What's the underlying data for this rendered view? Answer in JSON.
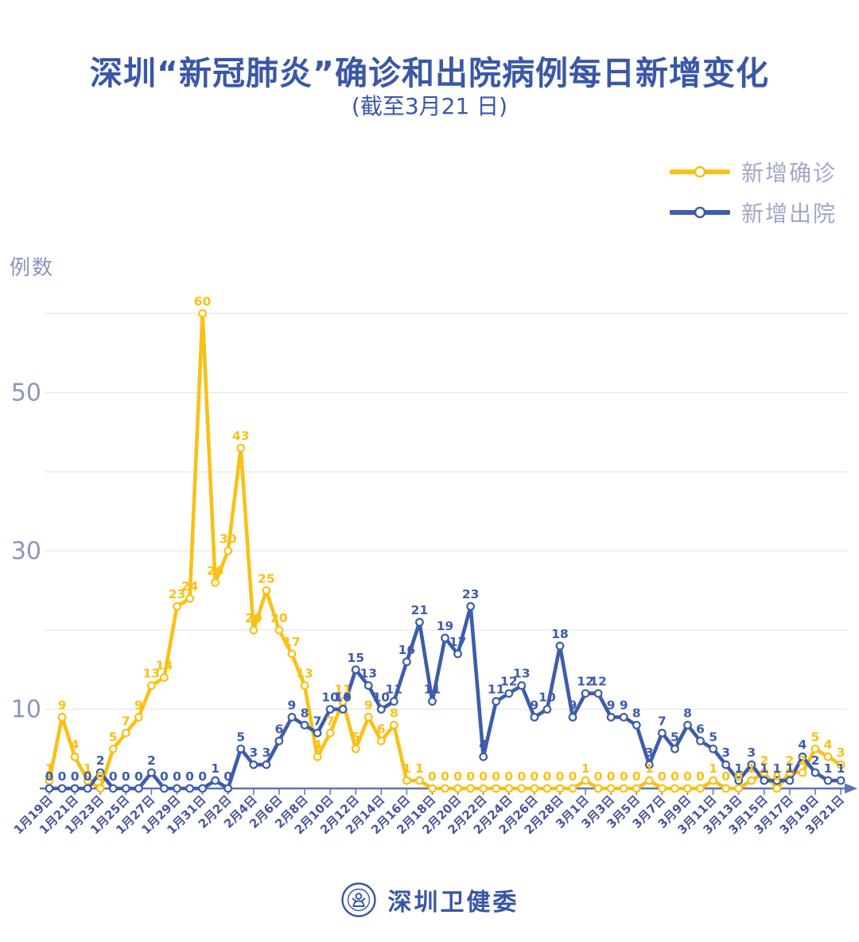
{
  "header": {
    "title": "深圳“新冠肺炎”确诊和出院病例每日新增变化",
    "subtitle": "(截至3月21 日)"
  },
  "legend": {
    "items": [
      {
        "label": "新增确诊",
        "color": "#F9C116"
      },
      {
        "label": "新增出院",
        "color": "#3E5CAB"
      }
    ]
  },
  "y_axis_unit": "例数",
  "footer": {
    "brand": "深圳卫健委"
  },
  "colors": {
    "title_blue": "#3A57A8",
    "confirmed_yellow": "#F9C116",
    "discharged_blue": "#3E5CAB",
    "legend_text": "#A3A7C9",
    "axis_tick_text": "#8E95BB",
    "date_label": "#47549B",
    "gridline": "#E6E7EE",
    "axis_line": "#6072B4"
  },
  "chart_data": {
    "type": "line",
    "title": "深圳“新冠肺炎”确诊和出院病例每日新增变化",
    "subtitle": "(截至3月21 日)",
    "ylabel": "例数",
    "ylim": [
      0,
      63
    ],
    "y_ticks_labeled": [
      10,
      30,
      50
    ],
    "gridlines_every": 10,
    "grid_max": 60,
    "grid": "horizontal",
    "legend_position": "top-right",
    "x_label_every": 2,
    "point_labels": true,
    "marker": "open-circle",
    "categories": [
      "1月19日",
      "1月20日",
      "1月21日",
      "1月22日",
      "1月23日",
      "1月24日",
      "1月25日",
      "1月26日",
      "1月27日",
      "1月28日",
      "1月29日",
      "1月30日",
      "1月31日",
      "2月1日",
      "2月2日",
      "2月3日",
      "2月4日",
      "2月5日",
      "2月6日",
      "2月7日",
      "2月8日",
      "2月9日",
      "2月10日",
      "2月11日",
      "2月12日",
      "2月13日",
      "2月14日",
      "2月15日",
      "2月16日",
      "2月17日",
      "2月18日",
      "2月19日",
      "2月20日",
      "2月21日",
      "2月22日",
      "2月23日",
      "2月24日",
      "2月25日",
      "2月26日",
      "2月27日",
      "2月28日",
      "2月29日",
      "3月1日",
      "3月2日",
      "3月3日",
      "3月4日",
      "3月5日",
      "3月6日",
      "3月7日",
      "3月8日",
      "3月9日",
      "3月10日",
      "3月11日",
      "3月12日",
      "3月13日",
      "3月14日",
      "3月15日",
      "3月16日",
      "3月17日",
      "3月18日",
      "3月19日",
      "3月20日",
      "3月21日"
    ],
    "series": [
      {
        "name": "新增确诊",
        "color": "#F9C116",
        "values": [
          1,
          9,
          4,
          1,
          0,
          5,
          7,
          9,
          13,
          14,
          23,
          24,
          60,
          26,
          30,
          43,
          20,
          25,
          20,
          17,
          13,
          4,
          7,
          11,
          5,
          9,
          6,
          8,
          1,
          1,
          0,
          0,
          0,
          0,
          0,
          0,
          0,
          0,
          0,
          0,
          0,
          0,
          1,
          0,
          0,
          0,
          0,
          1,
          0,
          0,
          0,
          0,
          1,
          0,
          0,
          1,
          2,
          0,
          2,
          2,
          5,
          4,
          3
        ]
      },
      {
        "name": "新增出院",
        "color": "#3E5CAB",
        "values": [
          0,
          0,
          0,
          0,
          2,
          0,
          0,
          0,
          2,
          0,
          0,
          0,
          0,
          1,
          0,
          5,
          3,
          3,
          6,
          9,
          8,
          7,
          10,
          10,
          15,
          13,
          10,
          11,
          16,
          21,
          11,
          19,
          17,
          23,
          4,
          11,
          12,
          13,
          9,
          10,
          18,
          9,
          12,
          12,
          9,
          9,
          8,
          3,
          7,
          5,
          8,
          6,
          5,
          3,
          1,
          3,
          1,
          1,
          1,
          4,
          2,
          1,
          1
        ]
      }
    ]
  }
}
